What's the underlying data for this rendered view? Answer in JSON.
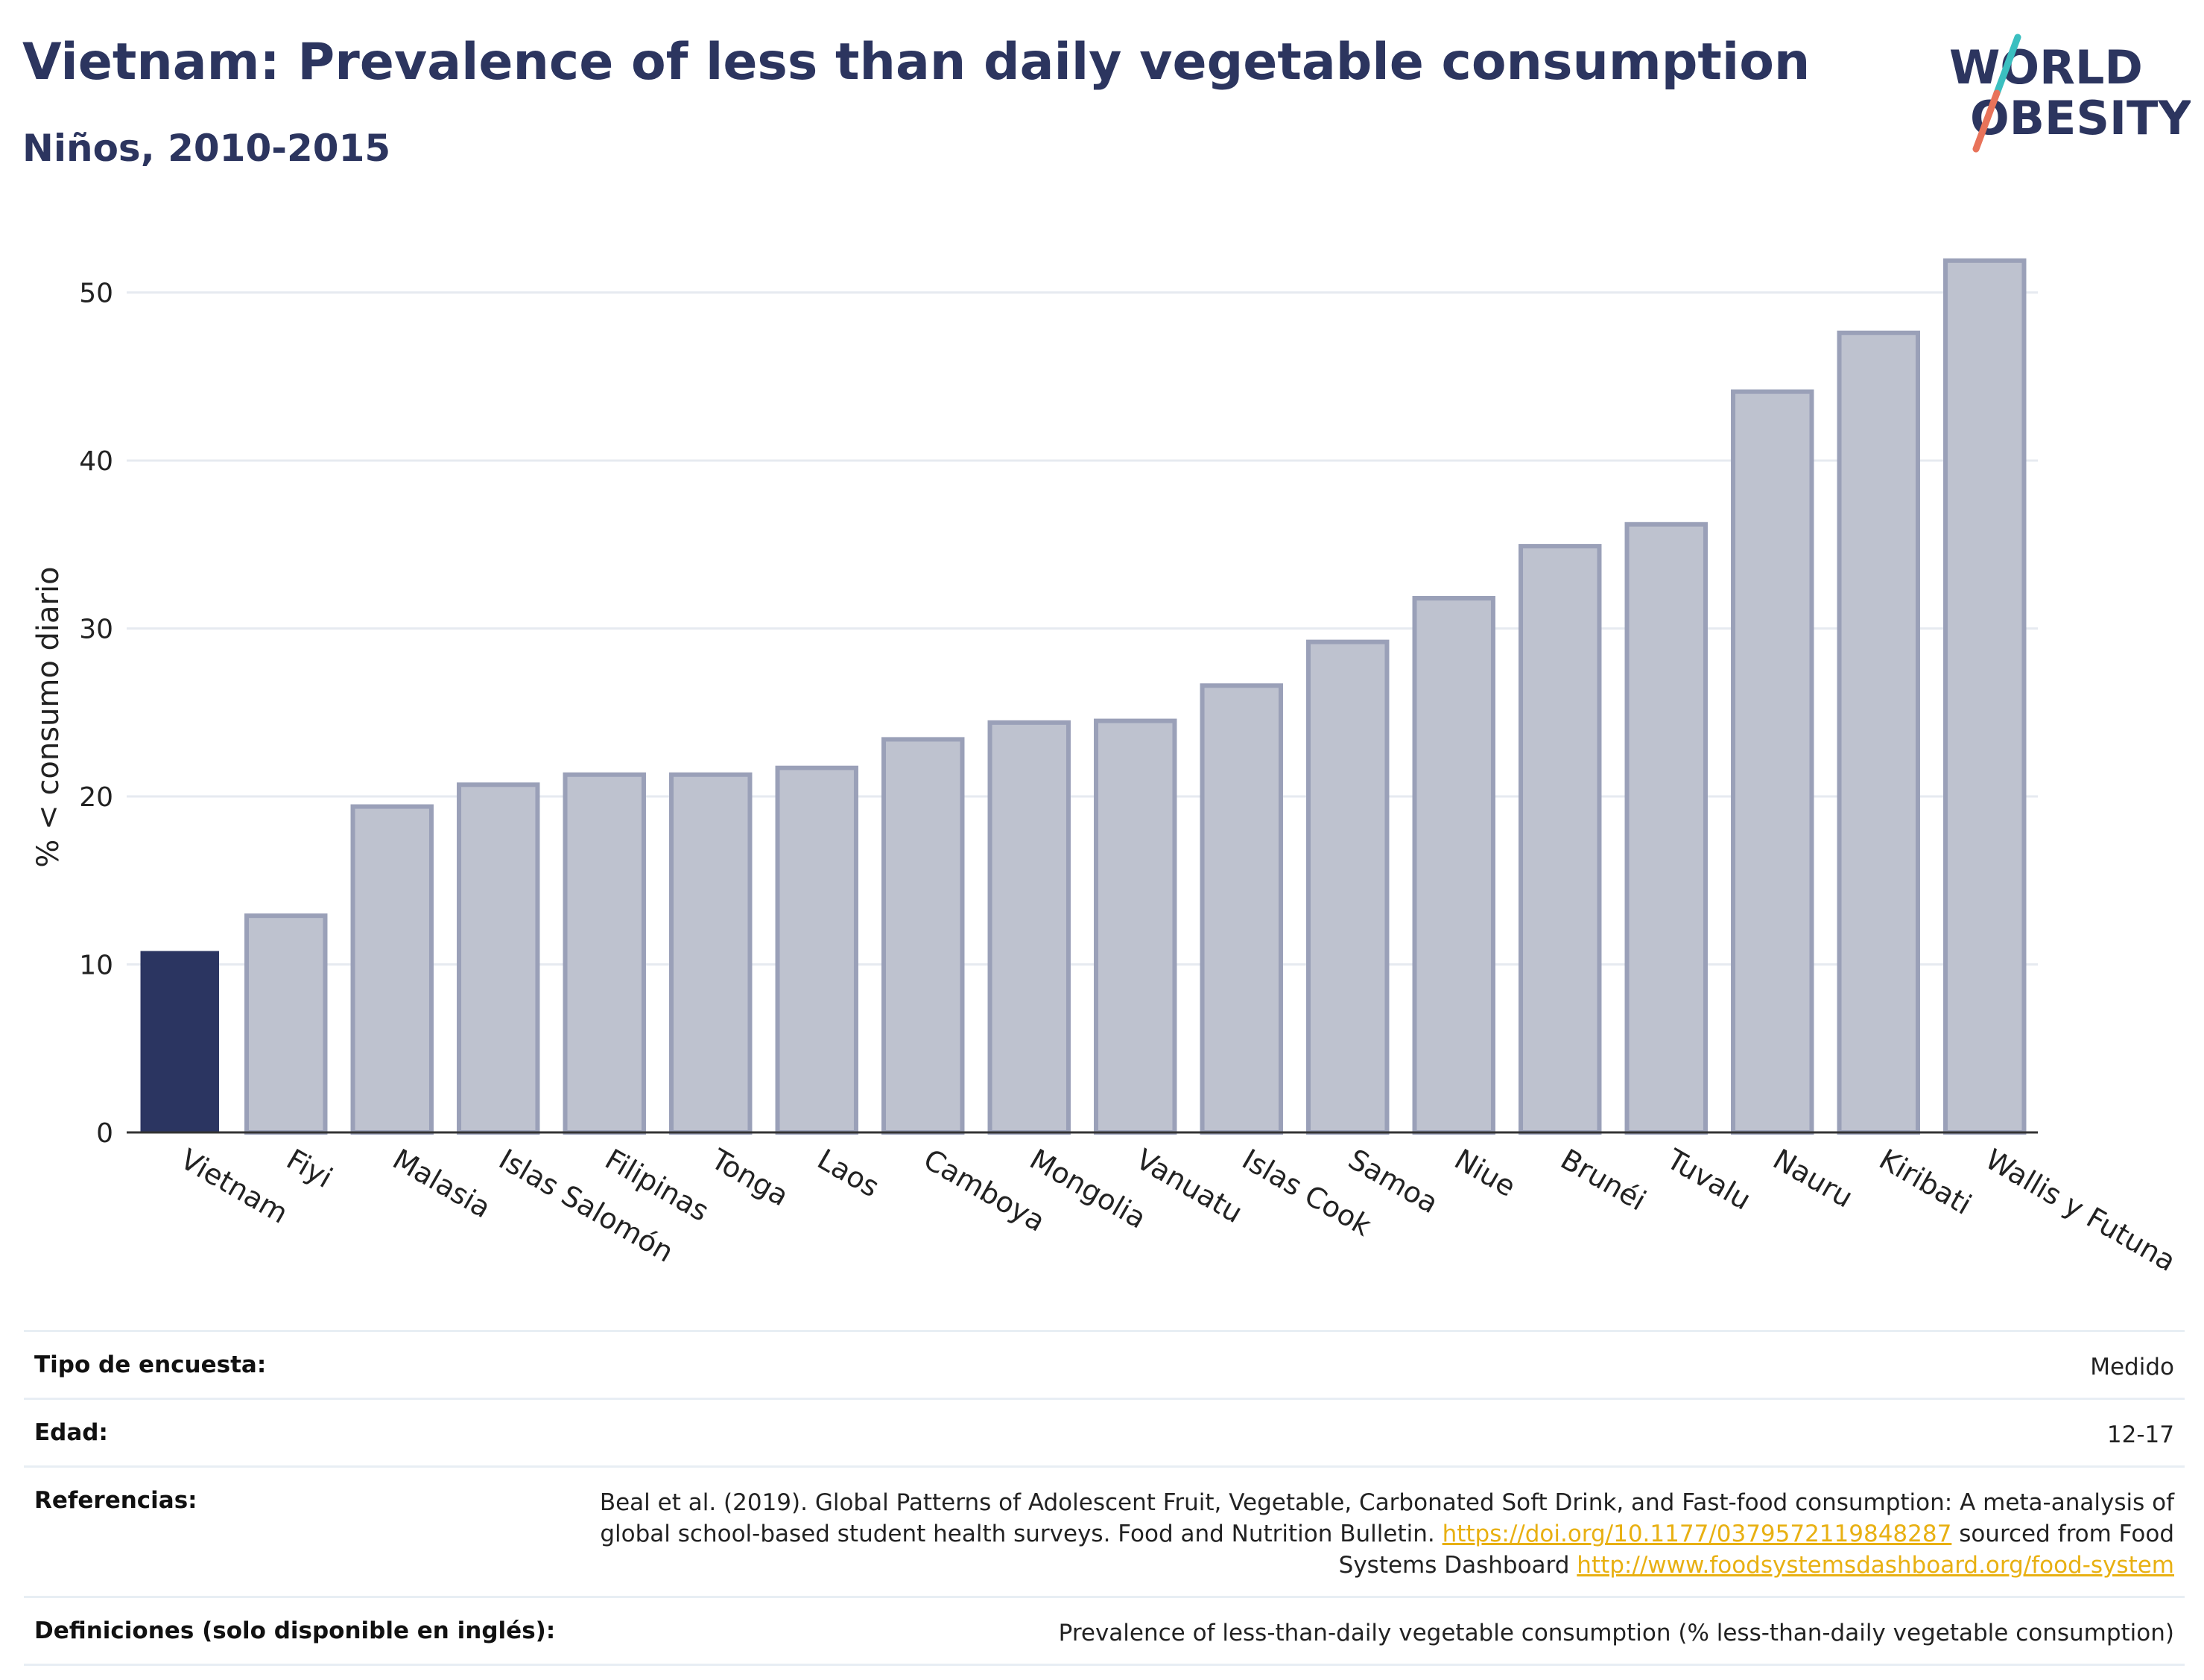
{
  "header": {
    "title": "Vietnam: Prevalence of less than daily vegetable consumption",
    "subtitle": "Niños, 2010-2015"
  },
  "logo": {
    "line1": "WORLD",
    "line2": "OBESITY"
  },
  "chart_data": {
    "type": "bar",
    "title": "Vietnam: Prevalence of less than daily vegetable consumption",
    "subtitle": "Niños, 2010-2015",
    "ylabel": "% < consumo diario",
    "xlabel": "",
    "ylim": [
      0,
      53
    ],
    "yticks": [
      0,
      10,
      20,
      30,
      40,
      50
    ],
    "grid": true,
    "highlight": "Vietnam",
    "categories": [
      "Vietnam",
      "Fiyi",
      "Malasia",
      "Islas Salomón",
      "Filipinas",
      "Tonga",
      "Laos",
      "Camboya",
      "Mongolia",
      "Vanuatu",
      "Islas Cook",
      "Samoa",
      "Niue",
      "Brunéi",
      "Tuvalu",
      "Nauru",
      "Kiribati",
      "Wallis y Futuna"
    ],
    "values": [
      10.8,
      12.9,
      19.4,
      20.7,
      21.3,
      21.3,
      21.7,
      23.4,
      24.4,
      24.5,
      26.6,
      29.2,
      31.8,
      34.9,
      36.2,
      44.1,
      47.6,
      51.9
    ]
  },
  "colors": {
    "highlight": "#2b3561",
    "bar_fill": "#bec2cf",
    "bar_stroke": "#9aa0b8",
    "title": "#2c355f",
    "link": "#e8b012",
    "logo_teal": "#3bbfc0",
    "logo_coral": "#e8735a"
  },
  "info": {
    "rows": [
      {
        "label": "Tipo de encuesta:",
        "value": "Medido"
      },
      {
        "label": "Edad:",
        "value": "12-17"
      },
      {
        "label": "Referencias:",
        "text1": "Beal et al. (2019). Global Patterns of Adolescent Fruit, Vegetable, Carbonated Soft Drink, and Fast-food consumption: A meta-analysis of global school-based student health surveys. Food and Nutrition Bulletin.",
        "link1": "https://doi.org/10.1177/0379572119848287",
        "text2": "sourced from Food Systems Dashboard",
        "link2": "http://www.foodsystemsdashboard.org/food-system"
      },
      {
        "label": "Definiciones (solo disponible en inglés):",
        "value": "Prevalence of less-than-daily vegetable consumption (% less-than-daily vegetable consumption)"
      }
    ]
  }
}
